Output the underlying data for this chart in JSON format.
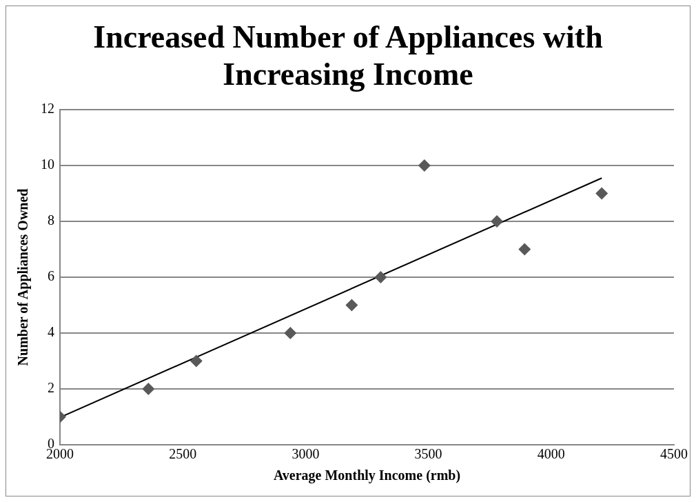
{
  "chart_data": {
    "type": "scatter",
    "title": "Increased Number of Appliances with Increasing Income",
    "xlabel": "Average Monthly Income (rmb)",
    "ylabel": "Number of Appliances Owned",
    "xlim": [
      2000,
      4500
    ],
    "xticks": [
      2000,
      2500,
      3000,
      3500,
      4000,
      4500
    ],
    "ylim": [
      0,
      12
    ],
    "yticks": [
      0,
      2,
      4,
      6,
      8,
      10,
      12
    ],
    "grid": "y",
    "series": [
      {
        "color": "#595959",
        "marker": "diamond",
        "x": [
          2000,
          2360,
          2555,
          2938,
          3188,
          3306,
          3484,
          3779,
          3892,
          4206
        ],
        "values": [
          1,
          2,
          3,
          4,
          5,
          6,
          10,
          8,
          7,
          9
        ]
      },
      {
        "type": "line",
        "color": "#000000",
        "marker": "none",
        "x": [
          2000,
          4206
        ],
        "values": [
          0.98,
          9.55
        ]
      }
    ]
  }
}
